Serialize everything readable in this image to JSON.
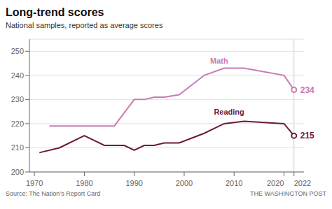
{
  "chart_data": {
    "type": "line",
    "title": "Long-trend scores",
    "subtitle": "National samples, reported as average scores",
    "xlim": [
      1969,
      2024
    ],
    "xticks": [
      1970,
      1980,
      1990,
      2000,
      2010,
      2020,
      2022
    ],
    "ylim": [
      200,
      255
    ],
    "yticks": [
      200,
      210,
      220,
      230,
      240,
      250
    ],
    "grid": true,
    "series": [
      {
        "name": "Math",
        "color": "#c97ab2",
        "x": [
          1973,
          1978,
          1982,
          1986,
          1990,
          1992,
          1994,
          1996,
          1999,
          2004,
          2008,
          2012,
          2020,
          2022
        ],
        "values": [
          219,
          219,
          219,
          219,
          230,
          230,
          231,
          231,
          232,
          240,
          243,
          243,
          240,
          234
        ]
      },
      {
        "name": "Reading",
        "color": "#6b1a3a",
        "x": [
          1971,
          1975,
          1980,
          1984,
          1988,
          1990,
          1992,
          1994,
          1996,
          1999,
          2004,
          2008,
          2012,
          2020,
          2022
        ],
        "values": [
          208,
          210,
          215,
          211,
          211,
          209,
          211,
          211,
          212,
          212,
          216,
          220,
          221,
          220,
          215
        ]
      }
    ],
    "annotations": [
      {
        "text": "Math",
        "x": 2007,
        "y": 246,
        "color": "#c97ab2"
      },
      {
        "text": "Reading",
        "x": 2009,
        "y": 225,
        "color": "#6b1a3a"
      },
      {
        "text": "234",
        "x": 2022,
        "y": 234,
        "color": "#c97ab2"
      },
      {
        "text": "215",
        "x": 2022,
        "y": 215,
        "color": "#6b1a3a"
      },
      {
        "text": "Source: The Nation’s Report Card"
      },
      {
        "text": "THE WASHINGTON POST"
      }
    ]
  }
}
